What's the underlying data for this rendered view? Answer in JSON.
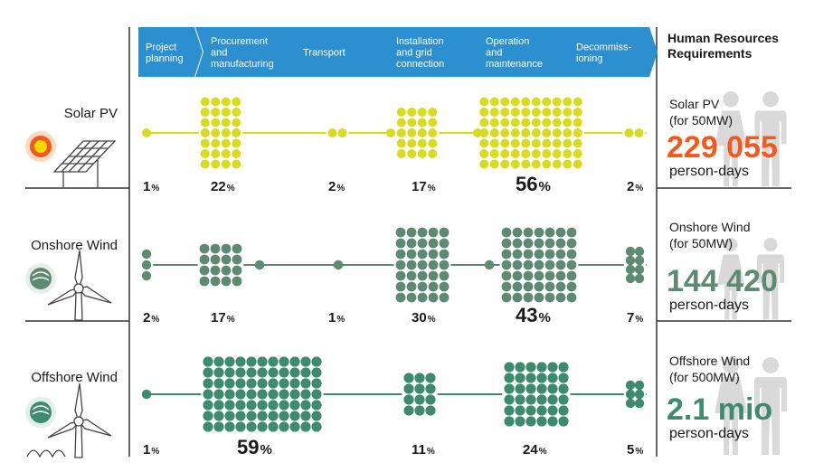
{
  "stages": [
    {
      "label": [
        "Project",
        "planning"
      ]
    },
    {
      "label": [
        "Procurement",
        "and",
        "manufacturing"
      ]
    },
    {
      "label": [
        "Transport"
      ]
    },
    {
      "label": [
        "Installation",
        "and grid",
        "connection"
      ]
    },
    {
      "label": [
        "Operation",
        "and",
        "maintenance"
      ]
    },
    {
      "label": [
        "Decommiss-",
        "ioning"
      ]
    }
  ],
  "rows": [
    {
      "name": "Solar PV",
      "color": "#d7dc1e",
      "percentages": [
        {
          "value": "1",
          "sign": "%",
          "big": false
        },
        {
          "value": "22",
          "sign": "%",
          "big": false
        },
        {
          "value": "2",
          "sign": "%",
          "big": false
        },
        {
          "value": "17",
          "sign": "%",
          "big": false
        },
        {
          "value": "56",
          "sign": "%",
          "big": true
        },
        {
          "value": "2",
          "sign": "%",
          "big": false
        }
      ],
      "hr": {
        "label": [
          "Solar PV",
          "(for 50MW)"
        ],
        "value": "229 055",
        "unit": "person-days",
        "color": "#f05a1e"
      }
    },
    {
      "name": "Onshore Wind",
      "color": "#5e8a72",
      "percentages": [
        {
          "value": "2",
          "sign": "%",
          "big": false
        },
        {
          "value": "17",
          "sign": "%",
          "big": false
        },
        {
          "value": "1",
          "sign": "%",
          "big": false
        },
        {
          "value": "30",
          "sign": "%",
          "big": false
        },
        {
          "value": "43",
          "sign": "%",
          "big": true
        },
        {
          "value": "7",
          "sign": "%",
          "big": false
        }
      ],
      "hr": {
        "label": [
          "Onshore Wind",
          "(for 50MW)"
        ],
        "value": "144 420",
        "unit": "person-days",
        "color": "#5e8a72"
      }
    },
    {
      "name": "Offshore Wind",
      "color": "#3d8a6e",
      "percentages": [
        {
          "value": "1",
          "sign": "%",
          "big": false
        },
        {
          "value": "59",
          "sign": "%",
          "big": true
        },
        {
          "value": "",
          "sign": "",
          "big": false
        },
        {
          "value": "11",
          "sign": "%",
          "big": false
        },
        {
          "value": "24",
          "sign": "%",
          "big": false
        },
        {
          "value": "5",
          "sign": "%",
          "big": false
        }
      ],
      "hr": {
        "label": [
          "Offshore Wind",
          "(for 500MW)"
        ],
        "value": "2.1 mio",
        "unit": "person-days",
        "color": "#3d8a6e"
      }
    }
  ],
  "hr_title": [
    "Human Resources",
    "Requirements"
  ],
  "colors": {
    "chevron": "#2b8fd0",
    "divider": "#333333",
    "icon_gray": "#d9d9d9",
    "sun_outer": "#f05a1e",
    "sun_inner": "#f7d800"
  }
}
